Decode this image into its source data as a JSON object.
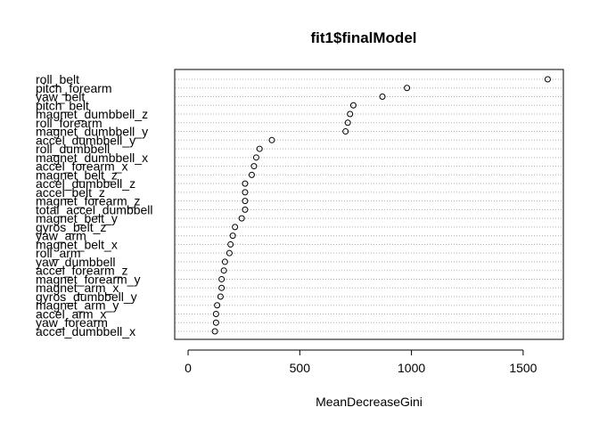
{
  "chart_data": {
    "type": "scatter",
    "title": "fit1$finalModel",
    "xlabel": "MeanDecreaseGini",
    "ylabel": "",
    "xlim": [
      -60,
      1680
    ],
    "x_ticks": [
      0,
      500,
      1000,
      1500
    ],
    "grid": "dotted horizontal lines per variable",
    "marker": "open-circle",
    "variables": [
      {
        "name": "roll_belt",
        "value": 1610
      },
      {
        "name": "pitch_forearm",
        "value": 980
      },
      {
        "name": "yaw_belt",
        "value": 870
      },
      {
        "name": "pitch_belt",
        "value": 740
      },
      {
        "name": "magnet_dumbbell_z",
        "value": 725
      },
      {
        "name": "roll_forearm",
        "value": 715
      },
      {
        "name": "magnet_dumbbell_y",
        "value": 705
      },
      {
        "name": "accel_dumbbell_y",
        "value": 375
      },
      {
        "name": "roll_dumbbell",
        "value": 320
      },
      {
        "name": "magnet_dumbbell_x",
        "value": 305
      },
      {
        "name": "accel_forearm_x",
        "value": 295
      },
      {
        "name": "magnet_belt_z",
        "value": 285
      },
      {
        "name": "accel_dumbbell_z",
        "value": 255
      },
      {
        "name": "accel_belt_z",
        "value": 255
      },
      {
        "name": "magnet_forearm_z",
        "value": 255
      },
      {
        "name": "total_accel_dumbbell",
        "value": 255
      },
      {
        "name": "magnet_belt_y",
        "value": 240
      },
      {
        "name": "gyros_belt_z",
        "value": 210
      },
      {
        "name": "yaw_arm",
        "value": 200
      },
      {
        "name": "magnet_belt_x",
        "value": 190
      },
      {
        "name": "roll_arm",
        "value": 185
      },
      {
        "name": "yaw_dumbbell",
        "value": 165
      },
      {
        "name": "accel_forearm_z",
        "value": 160
      },
      {
        "name": "magnet_forearm_y",
        "value": 150
      },
      {
        "name": "magnet_arm_x",
        "value": 150
      },
      {
        "name": "gyros_dumbbell_y",
        "value": 145
      },
      {
        "name": "magnet_arm_y",
        "value": 130
      },
      {
        "name": "accel_arm_x",
        "value": 125
      },
      {
        "name": "yaw_forearm",
        "value": 125
      },
      {
        "name": "accel_dumbbell_x",
        "value": 120
      }
    ]
  }
}
